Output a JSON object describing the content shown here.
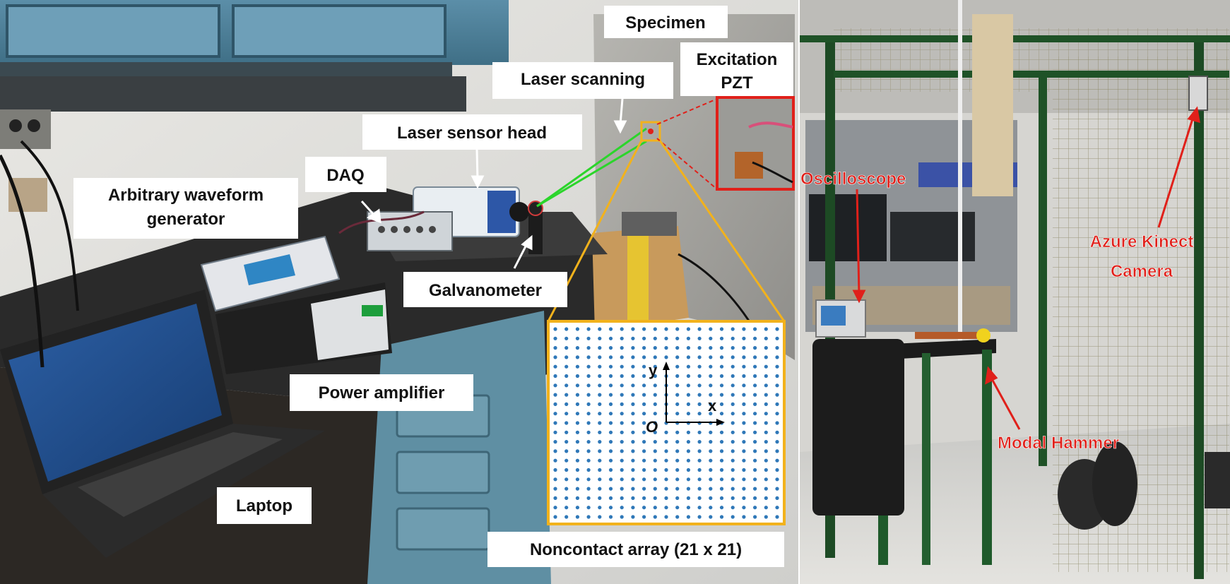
{
  "left_panel": {
    "labels": {
      "specimen": "Specimen",
      "excitation_1": "Excitation",
      "excitation_2": "PZT",
      "laser_scanning": "Laser scanning",
      "laser_sensor_head": "Laser sensor head",
      "daq": "DAQ",
      "awg_1": "Arbitrary waveform",
      "awg_2": "generator",
      "galvanometer": "Galvanometer",
      "power_amplifier": "Power amplifier",
      "laptop": "Laptop",
      "array_caption": "Noncontact array (21 x 21)"
    },
    "array": {
      "rows": 21,
      "cols": 21,
      "axis_y": "y",
      "axis_x": "x",
      "origin": "O"
    }
  },
  "right_panel": {
    "labels": {
      "oscilloscope": "Oscilloscope",
      "kinect_1": "Azure Kinect",
      "kinect_2": "Camera",
      "modal_hammer": "Modal Hammer"
    }
  },
  "colors": {
    "label_box": "#ffffff",
    "label_text": "#111111",
    "red_callout": "#e0201a",
    "green_beam": "#2bd52b",
    "zoom_frame": "#f2b21c",
    "grid_dot": "#2f78b8"
  }
}
